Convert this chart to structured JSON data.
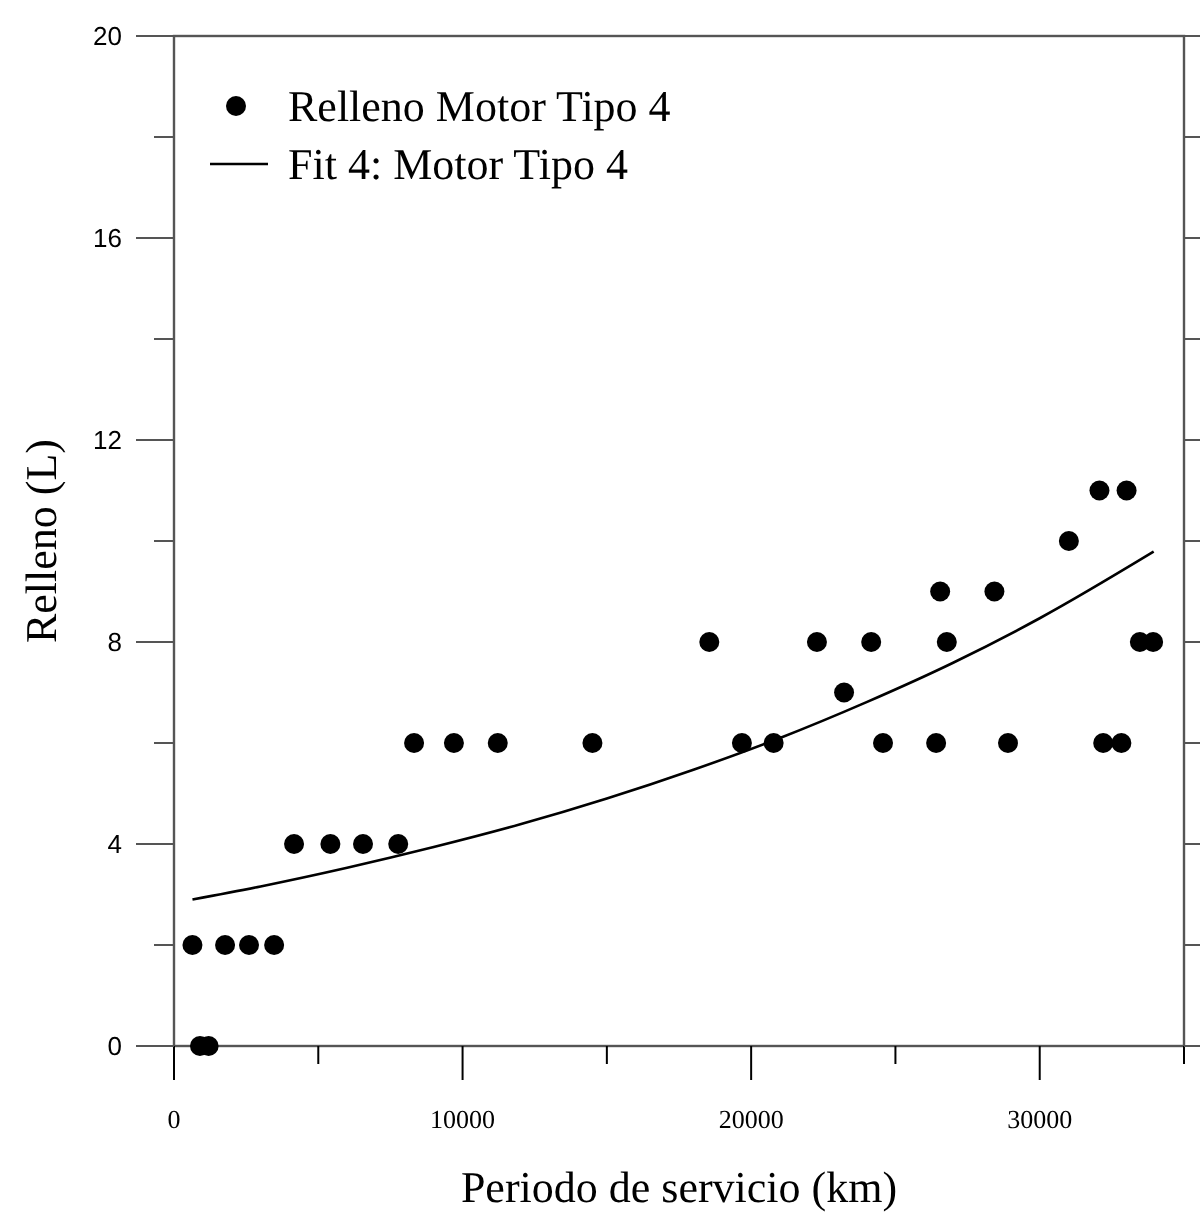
{
  "chart_data": {
    "type": "scatter",
    "xlabel": "Periodo de servicio (km)",
    "ylabel": "Relleno (L)",
    "xlim": [
      0,
      35000
    ],
    "xticks": [
      0,
      {
        "value": 5000,
        "label": null
      },
      10000,
      {
        "value": 15000,
        "label": null
      },
      20000,
      {
        "value": 25000,
        "label": null
      },
      30000,
      {
        "value": 35000,
        "label": null
      }
    ],
    "ylim": [
      0,
      20
    ],
    "yticks": [
      0,
      {
        "value": 2,
        "label": null
      },
      4,
      {
        "value": 6,
        "label": null
      },
      8,
      {
        "value": 10,
        "label": null
      },
      12,
      {
        "value": 14,
        "label": null
      },
      16,
      {
        "value": 18,
        "label": null
      },
      20
    ],
    "grid": false,
    "legend": "top left",
    "series": [
      {
        "name": "Relleno Motor Tipo 4",
        "marker": "circle",
        "color": "#000000",
        "x": [
          900,
          1200,
          640,
          1770,
          2600,
          3470,
          4160,
          5420,
          6550,
          7770,
          8320,
          9700,
          11220,
          14500,
          18550,
          22280,
          24160,
          26780,
          33470,
          33930,
          19680,
          20780,
          24570,
          26410,
          28900,
          32200,
          32830,
          23220,
          26550,
          28430,
          31010,
          32070,
          33010
        ],
        "values": [
          0,
          0,
          2,
          2,
          2,
          2,
          4,
          4,
          4,
          4,
          6,
          6,
          6,
          6,
          8,
          8,
          8,
          8,
          8,
          8,
          6,
          6,
          6,
          6,
          6,
          6,
          6,
          7,
          9,
          9,
          10,
          11,
          11
        ]
      },
      {
        "name": "Fit 4: Motor Tipo 4",
        "type": "line",
        "marker": "none",
        "line_style": "solid",
        "color": "#000000",
        "x": [
          640,
          3000,
          6000,
          9000,
          12000,
          15000,
          18000,
          21000,
          24000,
          27000,
          30000,
          33950
        ],
        "values": [
          2.9,
          3.16,
          3.53,
          3.94,
          4.39,
          4.9,
          5.47,
          6.1,
          6.81,
          7.59,
          8.47,
          9.79
        ]
      }
    ]
  }
}
